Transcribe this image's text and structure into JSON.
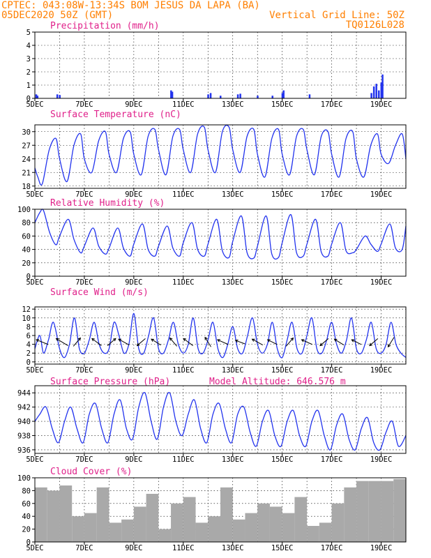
{
  "header": {
    "line1": "CPTEC:   043:08W-13:34S   BOM JESUS DA LAPA (BA)",
    "date": "05DEC2020 50Z (GMT)",
    "grid_note": "Vertical Grid Line: 50Z",
    "code": "TQ0126L028"
  },
  "model_altitude": "Model Altitude: 646.576 m",
  "colors": {
    "header": "#ff7f00",
    "title": "#e0208a",
    "line": "#2233ee",
    "cloud": "#a9a9a9",
    "frame": "#000000"
  },
  "x_axis": {
    "days": 15,
    "tick_labels": [
      "5DEC",
      "7DEC",
      "9DEC",
      "11DEC",
      "13DEC",
      "15DEC",
      "17DEC",
      "19DEC"
    ],
    "tick_days": [
      0,
      2,
      4,
      6,
      8,
      10,
      12,
      14
    ]
  },
  "chart_data": [
    {
      "type": "bar",
      "title": "Precipitation (mm/h)",
      "ylim": [
        0,
        5
      ],
      "yticks": [
        "0",
        "1",
        "2",
        "3",
        "4",
        "5"
      ],
      "x": [
        0.05,
        0.1,
        0.9,
        1.0,
        5.5,
        5.55,
        7.0,
        7.1,
        7.5,
        8.2,
        8.3,
        9.0,
        9.6,
        10.0,
        10.05,
        11.1,
        13.6,
        13.7,
        13.8,
        13.9,
        14.0,
        14.05
      ],
      "values": [
        0.3,
        0.2,
        0.3,
        0.25,
        0.6,
        0.5,
        0.3,
        0.4,
        0.2,
        0.3,
        0.35,
        0.2,
        0.2,
        0.4,
        0.6,
        0.3,
        0.4,
        0.9,
        1.1,
        0.6,
        1.2,
        1.8
      ]
    },
    {
      "type": "line",
      "title": "Surface Temperature (nC)",
      "ylim": [
        17.5,
        31.5
      ],
      "yticks": [
        "18",
        "21",
        "24",
        "27",
        "30"
      ],
      "x": [
        0,
        0.12,
        0.3,
        0.58,
        0.85,
        1.0,
        1.3,
        1.58,
        1.85,
        2.0,
        2.3,
        2.58,
        2.85,
        3.0,
        3.3,
        3.58,
        3.85,
        4.0,
        4.3,
        4.58,
        4.85,
        5.0,
        5.3,
        5.58,
        5.85,
        6.0,
        6.3,
        6.58,
        6.85,
        7.0,
        7.3,
        7.58,
        7.85,
        8.0,
        8.3,
        8.58,
        8.85,
        9.0,
        9.3,
        9.58,
        9.85,
        10.0,
        10.3,
        10.58,
        10.85,
        11.0,
        11.3,
        11.58,
        11.85,
        12.0,
        12.3,
        12.58,
        12.85,
        13.0,
        13.3,
        13.58,
        13.85,
        14.0,
        14.3,
        14.58,
        14.85,
        15.0
      ],
      "values": [
        22,
        20,
        18.5,
        26,
        28.5,
        24,
        19,
        27,
        29.5,
        24,
        21,
        28,
        30,
        25,
        21,
        28.5,
        30,
        25,
        20.5,
        29,
        30.5,
        26,
        20.5,
        29,
        30.5,
        26,
        21,
        29.5,
        31,
        26,
        21,
        30,
        31,
        26,
        21,
        29,
        30.5,
        25,
        20,
        28.5,
        30.5,
        25,
        20.5,
        29,
        30.5,
        26,
        20.5,
        29,
        30,
        25,
        20,
        28.5,
        30,
        24,
        20,
        27,
        29.5,
        25,
        23,
        27,
        29.5,
        24
      ]
    },
    {
      "type": "line",
      "title": "Relative Humidity (%)",
      "ylim": [
        0,
        100
      ],
      "yticks": [
        "0",
        "20",
        "40",
        "60",
        "80",
        "100"
      ],
      "x": [
        0,
        0.2,
        0.35,
        0.6,
        0.85,
        1.0,
        1.35,
        1.58,
        1.85,
        2.0,
        2.35,
        2.58,
        2.85,
        3.0,
        3.35,
        3.58,
        3.85,
        4.0,
        4.35,
        4.58,
        4.85,
        5.0,
        5.35,
        5.58,
        5.85,
        6.0,
        6.35,
        6.58,
        6.85,
        7.0,
        7.35,
        7.58,
        7.85,
        8.0,
        8.35,
        8.58,
        8.85,
        9.0,
        9.35,
        9.58,
        9.85,
        10.0,
        10.35,
        10.58,
        10.85,
        11.0,
        11.35,
        11.58,
        11.85,
        12.0,
        12.35,
        12.58,
        12.85,
        13.0,
        13.35,
        13.58,
        13.85,
        14.0,
        14.35,
        14.58,
        14.85,
        15.0
      ],
      "values": [
        80,
        95,
        98,
        65,
        47,
        60,
        85,
        55,
        35,
        45,
        72,
        45,
        33,
        42,
        72,
        42,
        30,
        48,
        78,
        40,
        30,
        45,
        75,
        42,
        30,
        50,
        80,
        40,
        30,
        48,
        85,
        38,
        28,
        52,
        90,
        35,
        27,
        45,
        90,
        33,
        28,
        50,
        92,
        35,
        30,
        48,
        85,
        36,
        30,
        48,
        80,
        38,
        35,
        40,
        60,
        48,
        37,
        48,
        78,
        42,
        40,
        75
      ]
    },
    {
      "type": "line",
      "title": "Surface Wind (m/s)",
      "ylim": [
        -0.5,
        12.5
      ],
      "yticks": [
        "0",
        "2",
        "4",
        "6",
        "8",
        "10",
        "12"
      ],
      "x": [
        0,
        0.2,
        0.35,
        0.55,
        0.75,
        1.0,
        1.2,
        1.4,
        1.6,
        1.8,
        2.0,
        2.2,
        2.4,
        2.6,
        2.8,
        3.0,
        3.2,
        3.4,
        3.6,
        3.8,
        4.0,
        4.2,
        4.4,
        4.6,
        4.8,
        5.0,
        5.2,
        5.4,
        5.6,
        5.8,
        6.0,
        6.2,
        6.4,
        6.6,
        6.8,
        7.0,
        7.2,
        7.4,
        7.6,
        7.8,
        8.0,
        8.2,
        8.4,
        8.6,
        8.8,
        9.0,
        9.2,
        9.4,
        9.6,
        9.8,
        10.0,
        10.2,
        10.4,
        10.6,
        10.8,
        11.0,
        11.2,
        11.4,
        11.6,
        11.8,
        12.0,
        12.2,
        12.4,
        12.6,
        12.8,
        13.0,
        13.2,
        13.4,
        13.6,
        13.8,
        14.0,
        14.2,
        14.4,
        14.6,
        14.8,
        15.0
      ],
      "values": [
        3,
        6,
        2,
        5,
        9,
        3,
        1,
        4,
        10,
        3,
        2,
        5,
        9,
        4,
        2,
        3,
        9,
        6,
        2,
        4,
        11,
        3,
        2,
        6,
        10,
        3,
        2,
        5,
        9,
        4,
        2,
        4,
        10,
        3,
        2,
        5,
        9,
        3,
        1,
        4,
        8,
        3,
        2,
        6,
        10,
        4,
        2,
        4,
        9,
        3,
        1,
        5,
        9,
        3,
        2,
        6,
        10,
        3,
        2,
        5,
        9,
        4,
        2,
        5,
        10,
        3,
        2,
        5,
        9,
        3,
        2,
        4,
        9,
        4,
        2,
        1
      ],
      "arrows": [
        {
          "day": 0.3,
          "u": -1,
          "v": 0.4
        },
        {
          "day": 1.1,
          "u": -1,
          "v": 0.6
        },
        {
          "day": 1.7,
          "u": 0.6,
          "v": 0.7
        },
        {
          "day": 2.5,
          "u": -0.8,
          "v": 0.6
        },
        {
          "day": 3.1,
          "u": 0.7,
          "v": 0.6
        },
        {
          "day": 3.6,
          "u": -0.9,
          "v": 0.5
        },
        {
          "day": 4.3,
          "u": -0.7,
          "v": -0.6
        },
        {
          "day": 4.9,
          "u": -0.8,
          "v": 0.5
        },
        {
          "day": 5.6,
          "u": -0.6,
          "v": 0.7
        },
        {
          "day": 6.2,
          "u": -0.8,
          "v": 0.6
        },
        {
          "day": 7.0,
          "u": -0.5,
          "v": 0.8
        },
        {
          "day": 7.6,
          "u": -0.9,
          "v": 0.4
        },
        {
          "day": 8.3,
          "u": -0.8,
          "v": 0.3
        },
        {
          "day": 9.0,
          "u": -0.9,
          "v": 0.5
        },
        {
          "day": 9.6,
          "u": -0.8,
          "v": 0.4
        },
        {
          "day": 10.3,
          "u": 0.6,
          "v": 0.7
        },
        {
          "day": 11.0,
          "u": -0.9,
          "v": 0.4
        },
        {
          "day": 11.7,
          "u": -0.7,
          "v": -0.6
        },
        {
          "day": 12.3,
          "u": -0.8,
          "v": 0.5
        },
        {
          "day": 13.0,
          "u": -0.8,
          "v": 0.4
        },
        {
          "day": 13.7,
          "u": -0.7,
          "v": -0.6
        },
        {
          "day": 14.4,
          "u": -0.5,
          "v": -0.8
        }
      ]
    },
    {
      "type": "line",
      "title": "Surface Pressure (hPa)",
      "ylim": [
        935.5,
        945
      ],
      "yticks": [
        "936",
        "938",
        "940",
        "942",
        "944"
      ],
      "x": [
        0,
        0.2,
        0.45,
        0.7,
        0.95,
        1.2,
        1.45,
        1.7,
        1.95,
        2.2,
        2.45,
        2.7,
        2.95,
        3.2,
        3.45,
        3.7,
        3.95,
        4.2,
        4.45,
        4.7,
        4.95,
        5.2,
        5.45,
        5.7,
        5.95,
        6.2,
        6.45,
        6.7,
        6.95,
        7.2,
        7.45,
        7.7,
        7.95,
        8.2,
        8.45,
        8.7,
        8.95,
        9.2,
        9.45,
        9.7,
        9.95,
        10.2,
        10.45,
        10.7,
        10.95,
        11.2,
        11.45,
        11.7,
        11.95,
        12.2,
        12.45,
        12.7,
        12.95,
        13.2,
        13.45,
        13.7,
        13.95,
        14.2,
        14.45,
        14.7,
        15.0
      ],
      "values": [
        940,
        941,
        942,
        939,
        937,
        940,
        942,
        939,
        937,
        941,
        942.5,
        939,
        937,
        941,
        943,
        939,
        937.5,
        942,
        944,
        940,
        937.5,
        942,
        944,
        940,
        938,
        941,
        943,
        939,
        937,
        941,
        942.5,
        939,
        937,
        941,
        942,
        938.5,
        936.5,
        940,
        941.5,
        938,
        936.5,
        940,
        941.5,
        938,
        936.5,
        940,
        941.5,
        938,
        936,
        939.5,
        941,
        937.5,
        936,
        939,
        940.5,
        937,
        936,
        938.5,
        940,
        936.5,
        938
      ]
    },
    {
      "type": "bar",
      "title": "Cloud Cover (%)",
      "ylim": [
        0,
        100
      ],
      "yticks": [
        "0",
        "20",
        "40",
        "60",
        "80",
        "100"
      ],
      "x": [
        0,
        0.5,
        1.0,
        1.5,
        2.0,
        2.5,
        3.0,
        3.5,
        4.0,
        4.5,
        5.0,
        5.5,
        6.0,
        6.5,
        7.0,
        7.5,
        8.0,
        8.5,
        9.0,
        9.5,
        10.0,
        10.5,
        11.0,
        11.5,
        12.0,
        12.5,
        13.0,
        13.5,
        14.0,
        14.5
      ],
      "values": [
        85,
        80,
        88,
        40,
        45,
        85,
        30,
        35,
        55,
        75,
        20,
        60,
        70,
        30,
        40,
        85,
        35,
        45,
        60,
        55,
        45,
        70,
        25,
        30,
        60,
        85,
        95,
        95,
        95,
        98
      ]
    }
  ]
}
